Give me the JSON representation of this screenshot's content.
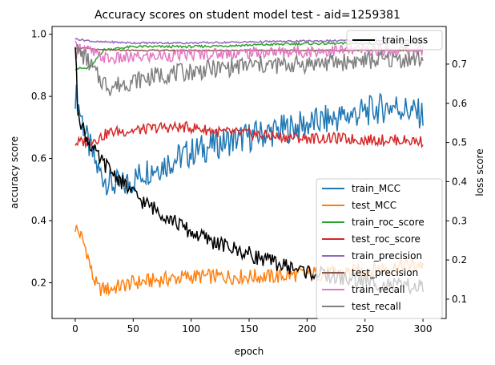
{
  "chart_data": {
    "type": "line",
    "title": "Accuracy scores on student model test - aid=1259381",
    "xlabel": "epoch",
    "ylabel": "accuracy score",
    "y2label": "loss score",
    "xlim": [
      -20,
      320
    ],
    "ylim": [
      0.085,
      1.025
    ],
    "y2lim": [
      0.0507,
      0.7961
    ],
    "x_ticks": [
      0,
      50,
      100,
      150,
      200,
      250,
      300
    ],
    "x_tick_labels": [
      "0",
      "50",
      "100",
      "150",
      "200",
      "250",
      "300"
    ],
    "y_ticks": [
      0.2,
      0.4,
      0.6,
      0.8,
      1.0
    ],
    "y_tick_labels": [
      "0.2",
      "0.4",
      "0.6",
      "0.8",
      "1.0"
    ],
    "y2_ticks": [
      0.1,
      0.2,
      0.3,
      0.4,
      0.5,
      0.6,
      0.7
    ],
    "y2_tick_labels": [
      "0.1",
      "0.2",
      "0.3",
      "0.4",
      "0.5",
      "0.6",
      "0.7"
    ],
    "grid": false,
    "legend_right_top": "upper-right",
    "legend_main": "lower-right",
    "series": [
      {
        "name": "train_MCC",
        "axis": "left",
        "color": "#1f77b4",
        "x": [
          0,
          5,
          10,
          20,
          30,
          40,
          50,
          60,
          75,
          100,
          125,
          150,
          175,
          200,
          225,
          250,
          275,
          300
        ],
        "y": [
          0.81,
          0.74,
          0.66,
          0.56,
          0.52,
          0.51,
          0.53,
          0.56,
          0.58,
          0.62,
          0.65,
          0.67,
          0.69,
          0.71,
          0.73,
          0.75,
          0.77,
          0.74
        ]
      },
      {
        "name": "test_MCC",
        "axis": "left",
        "color": "#ff7f0e",
        "x": [
          0,
          5,
          10,
          15,
          20,
          30,
          50,
          75,
          100,
          125,
          150,
          175,
          200,
          225,
          250,
          275,
          300
        ],
        "y": [
          0.38,
          0.35,
          0.3,
          0.22,
          0.18,
          0.18,
          0.2,
          0.21,
          0.22,
          0.22,
          0.22,
          0.22,
          0.23,
          0.23,
          0.24,
          0.25,
          0.26
        ]
      },
      {
        "name": "train_roc_score",
        "axis": "left",
        "color": "#2ca02c",
        "x": [
          0,
          10,
          15,
          20,
          25,
          50,
          100,
          150,
          200,
          250,
          300
        ],
        "y": [
          0.89,
          0.89,
          0.9,
          0.93,
          0.95,
          0.96,
          0.96,
          0.965,
          0.97,
          0.97,
          0.97
        ]
      },
      {
        "name": "test_roc_score",
        "axis": "left",
        "color": "#d62728",
        "x": [
          0,
          10,
          20,
          30,
          50,
          75,
          100,
          125,
          150,
          175,
          200,
          225,
          250,
          275,
          300
        ],
        "y": [
          0.65,
          0.655,
          0.665,
          0.685,
          0.69,
          0.7,
          0.7,
          0.685,
          0.68,
          0.67,
          0.665,
          0.665,
          0.66,
          0.66,
          0.655
        ]
      },
      {
        "name": "train_precision",
        "axis": "left",
        "color": "#9467bd",
        "x": [
          0,
          10,
          20,
          30,
          50,
          100,
          150,
          200,
          250,
          300
        ],
        "y": [
          0.985,
          0.98,
          0.975,
          0.975,
          0.972,
          0.972,
          0.975,
          0.978,
          0.98,
          0.98
        ]
      },
      {
        "name": "test_precision",
        "axis": "left",
        "color": "#8c564b",
        "x": [
          0,
          10,
          20,
          50,
          100,
          150,
          200,
          250,
          300
        ],
        "y": [
          0.955,
          0.955,
          0.95,
          0.948,
          0.948,
          0.948,
          0.948,
          0.948,
          0.948
        ]
      },
      {
        "name": "train_recall",
        "axis": "left",
        "color": "#e377c2",
        "x": [
          0,
          10,
          20,
          30,
          50,
          75,
          100,
          150,
          200,
          250,
          300
        ],
        "y": [
          0.96,
          0.95,
          0.93,
          0.92,
          0.925,
          0.93,
          0.935,
          0.94,
          0.945,
          0.95,
          0.95
        ]
      },
      {
        "name": "test_recall",
        "axis": "left",
        "color": "#7f7f7f",
        "x": [
          0,
          10,
          20,
          30,
          40,
          50,
          75,
          100,
          125,
          150,
          175,
          200,
          225,
          250,
          275,
          300
        ],
        "y": [
          0.95,
          0.92,
          0.86,
          0.83,
          0.84,
          0.85,
          0.87,
          0.88,
          0.89,
          0.9,
          0.9,
          0.905,
          0.91,
          0.915,
          0.92,
          0.92
        ]
      },
      {
        "name": "train_loss",
        "axis": "right",
        "color": "#000000",
        "x": [
          0,
          2,
          5,
          10,
          20,
          30,
          40,
          50,
          60,
          75,
          100,
          125,
          150,
          175,
          200,
          225,
          250,
          275,
          300
        ],
        "y": [
          0.75,
          0.6,
          0.55,
          0.51,
          0.46,
          0.43,
          0.4,
          0.37,
          0.345,
          0.32,
          0.27,
          0.24,
          0.215,
          0.19,
          0.17,
          0.155,
          0.145,
          0.135,
          0.13
        ]
      }
    ]
  }
}
